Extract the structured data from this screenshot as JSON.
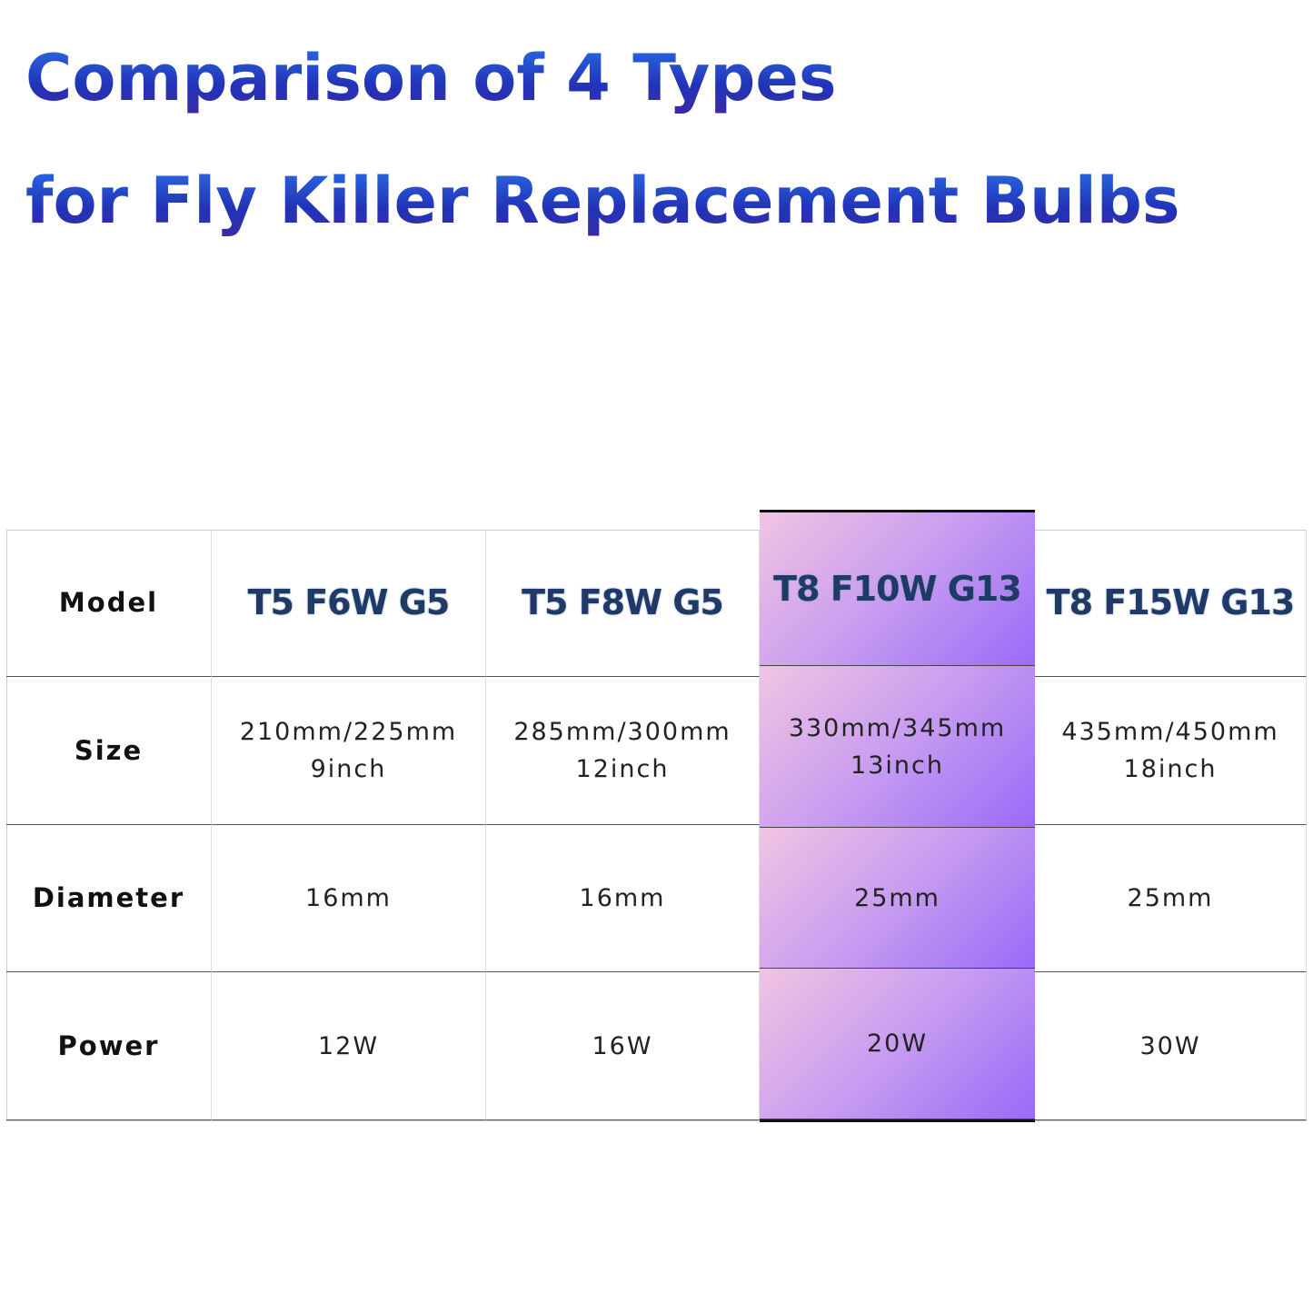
{
  "header": {
    "title": [
      "Comparison of 4 Types",
      "for Fly Killer Replacement Bulbs"
    ]
  },
  "table": {
    "rows": [
      [
        "Model",
        "T5 F6W G5",
        "T5 F8W G5",
        "T8 F10W G13",
        "T8 F15W G13"
      ],
      [
        "Size",
        [
          "210mm/225mm",
          "9inch"
        ],
        [
          "285mm/300mm",
          "12inch"
        ],
        [
          "330mm/345mm",
          "13inch"
        ],
        [
          "435mm/450mm",
          "18inch"
        ]
      ],
      [
        "Diameter",
        "16mm",
        "16mm",
        "25mm",
        "25mm"
      ],
      [
        "Power",
        "12W",
        "16W",
        "20W",
        "30W"
      ]
    ]
  }
}
